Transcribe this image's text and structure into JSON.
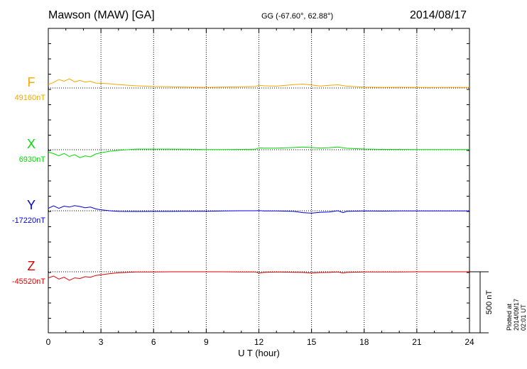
{
  "header": {
    "station": "Mawson (MAW)  [GA]",
    "coords": "GG (-67.60°,  62.88°)",
    "date": "2014/08/17"
  },
  "side_note": "Plotted at 2014/09/17 02:01  UT",
  "chart_data": {
    "type": "line",
    "title": "Mawson (MAW)  [GA]",
    "xlabel": "U T (hour)",
    "xlim": [
      0,
      24
    ],
    "xticks": [
      0,
      3,
      6,
      9,
      12,
      15,
      18,
      21,
      24
    ],
    "grid": "vertical dotted lines at every 3 hours; dotted baseline per component",
    "scale_bar": {
      "label": "500 nT",
      "value_nT": 500
    },
    "series": [
      {
        "name": "F",
        "baseline_label": "49160nT",
        "baseline_nT": 49160,
        "color": "#f5a800",
        "x": [
          0,
          0.3,
          0.6,
          0.9,
          1.2,
          1.5,
          1.8,
          2.1,
          2.4,
          2.7,
          3.0,
          3.5,
          4,
          5,
          6,
          7,
          8,
          9,
          10,
          11,
          11.8,
          12,
          12.3,
          13,
          14,
          14.5,
          15,
          15.5,
          16,
          16.5,
          17,
          18,
          19,
          20,
          21,
          22,
          23,
          24
        ],
        "y": [
          49190,
          49205,
          49230,
          49215,
          49235,
          49210,
          49222,
          49208,
          49215,
          49200,
          49198,
          49195,
          49188,
          49178,
          49172,
          49170,
          49167,
          49165,
          49168,
          49170,
          49172,
          49182,
          49178,
          49175,
          49188,
          49192,
          49185,
          49176,
          49182,
          49186,
          49175,
          49167,
          49165,
          49166,
          49165,
          49164,
          49165,
          49165
        ]
      },
      {
        "name": "X",
        "baseline_label": "6930nT",
        "baseline_nT": 6930,
        "color": "#00dd00",
        "x": [
          0,
          0.3,
          0.6,
          0.9,
          1.2,
          1.5,
          1.8,
          2.1,
          2.4,
          2.7,
          3.0,
          3.5,
          4,
          5,
          6,
          7,
          8,
          9,
          10,
          11,
          11.8,
          12,
          12.3,
          13,
          14,
          14.5,
          15,
          15.5,
          16,
          16.5,
          17,
          18,
          19,
          20,
          21,
          22,
          23,
          24
        ],
        "y": [
          6910,
          6898,
          6880,
          6900,
          6875,
          6890,
          6865,
          6880,
          6872,
          6895,
          6905,
          6918,
          6925,
          6935,
          6935,
          6935,
          6934,
          6932,
          6932,
          6933,
          6934,
          6945,
          6943,
          6943,
          6948,
          6952,
          6948,
          6944,
          6947,
          6952,
          6942,
          6936,
          6933,
          6933,
          6932,
          6931,
          6931,
          6931
        ]
      },
      {
        "name": "Y",
        "baseline_label": "-17220nT",
        "baseline_nT": -17220,
        "color": "#0000dd",
        "x": [
          0,
          0.3,
          0.6,
          0.9,
          1.2,
          1.5,
          1.8,
          2.1,
          2.4,
          2.7,
          3.0,
          3.5,
          4,
          5,
          6,
          7,
          8,
          9,
          10,
          11,
          11.8,
          12,
          12.3,
          13,
          14,
          14.5,
          15,
          15.5,
          16,
          16.5,
          16.8,
          17,
          18,
          19,
          20,
          21,
          22,
          23,
          24
        ],
        "y": [
          -17200,
          -17180,
          -17200,
          -17182,
          -17190,
          -17178,
          -17185,
          -17195,
          -17190,
          -17205,
          -17212,
          -17220,
          -17225,
          -17226,
          -17225,
          -17225,
          -17224,
          -17224,
          -17222,
          -17220,
          -17220,
          -17218,
          -17222,
          -17222,
          -17225,
          -17235,
          -17240,
          -17232,
          -17230,
          -17220,
          -17235,
          -17225,
          -17222,
          -17223,
          -17222,
          -17222,
          -17222,
          -17222,
          -17222
        ]
      },
      {
        "name": "Z",
        "baseline_label": "-45520nT",
        "baseline_nT": -45520,
        "color": "#dd0000",
        "x": [
          0,
          0.3,
          0.6,
          0.9,
          1.2,
          1.5,
          1.8,
          2.1,
          2.4,
          2.7,
          3.0,
          3.5,
          4,
          5,
          6,
          7,
          8,
          9,
          10,
          11,
          11.8,
          12,
          12.3,
          13,
          14,
          14.5,
          15,
          15.5,
          16,
          16.5,
          16.8,
          17,
          18,
          19,
          20,
          21,
          22,
          23,
          24
        ],
        "y": [
          -45570,
          -45555,
          -45580,
          -45565,
          -45590,
          -45570,
          -45575,
          -45560,
          -45565,
          -45550,
          -45545,
          -45535,
          -45528,
          -45522,
          -45521,
          -45520,
          -45520,
          -45520,
          -45520,
          -45521,
          -45521,
          -45530,
          -45525,
          -45522,
          -45524,
          -45525,
          -45530,
          -45526,
          -45525,
          -45522,
          -45530,
          -45525,
          -45522,
          -45521,
          -45521,
          -45520,
          -45520,
          -45520,
          -45520
        ]
      }
    ]
  }
}
